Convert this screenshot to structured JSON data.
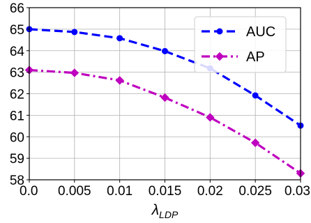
{
  "chart_data": {
    "type": "line",
    "x": [
      0.0,
      0.005,
      0.01,
      0.015,
      0.02,
      0.025,
      0.03
    ],
    "x_tick_labels": [
      "0.0",
      "0.005",
      "0.01",
      "0.015",
      "0.02",
      "0.025",
      "0.03"
    ],
    "xlim": [
      0.0,
      0.03
    ],
    "ylim": [
      58,
      66
    ],
    "y_ticks": [
      58,
      59,
      60,
      61,
      62,
      63,
      64,
      65,
      66
    ],
    "xlabel": {
      "symbol": "λ",
      "subscript": "LDP"
    },
    "ylabel": "",
    "title": "",
    "grid": true,
    "legend_position": "top-right",
    "series": [
      {
        "name": "AUC",
        "values": [
          65.0,
          64.87,
          64.58,
          63.98,
          63.18,
          61.92,
          60.52
        ],
        "color": "#0000ff",
        "line_style": "dashed",
        "marker": "circle"
      },
      {
        "name": "AP",
        "values": [
          63.1,
          62.97,
          62.62,
          61.82,
          60.9,
          59.72,
          58.3
        ],
        "color": "#bf00bf",
        "line_style": "dash-dot",
        "marker": "diamond"
      }
    ]
  }
}
